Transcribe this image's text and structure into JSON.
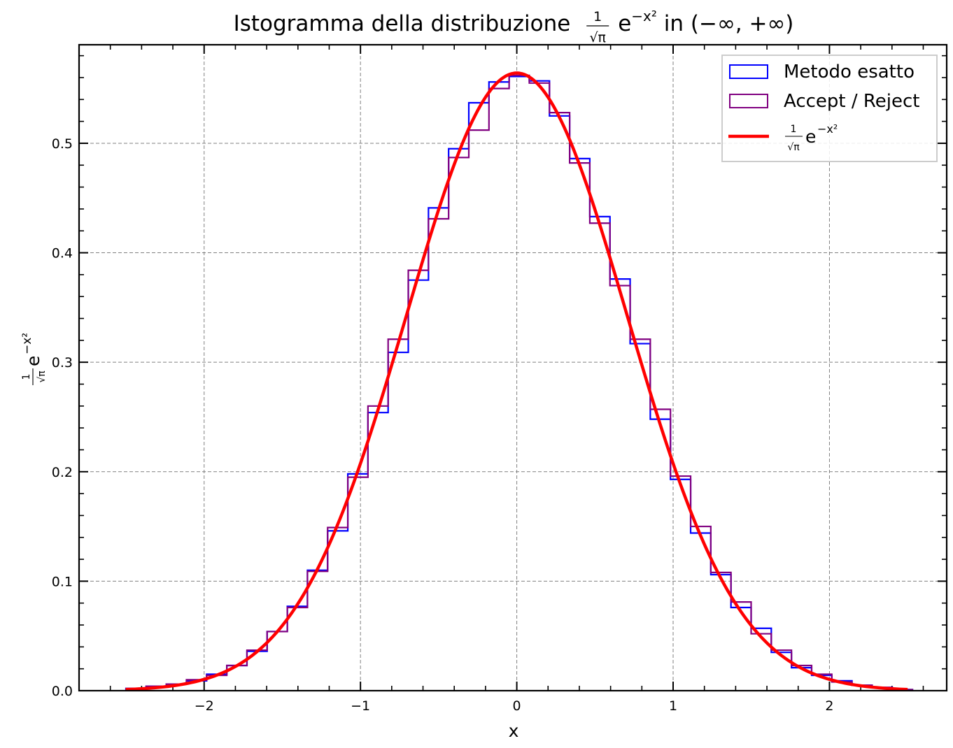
{
  "chart_data": {
    "type": "histogram",
    "title": {
      "prefix": "Istogramma della distribuzione ",
      "frac_num": "1",
      "frac_den": "√π",
      "base": "e",
      "exponent": "−x²",
      "suffix": " in (−∞, +∞)"
    },
    "xlabel": "x",
    "ylabel": {
      "frac_num": "1",
      "frac_den": "√π",
      "base": "e",
      "exponent": "−x²"
    },
    "xlim": [
      -2.8,
      2.75
    ],
    "ylim": [
      0,
      0.59
    ],
    "x_ticks": [
      -2,
      -1,
      0,
      1,
      2
    ],
    "x_tick_labels": [
      "−2",
      "−1",
      "0",
      "1",
      "2"
    ],
    "y_ticks": [
      0.0,
      0.1,
      0.2,
      0.3,
      0.4,
      0.5
    ],
    "y_tick_labels": [
      "0.0",
      "0.1",
      "0.2",
      "0.3",
      "0.4",
      "0.5"
    ],
    "x_minor_step": 0.2,
    "y_minor_step": 0.02,
    "grid": true,
    "legend_position": "top-right",
    "bin_edges": [
      -2.5,
      -2.371,
      -2.242,
      -2.113,
      -1.984,
      -1.855,
      -1.726,
      -1.597,
      -1.468,
      -1.339,
      -1.21,
      -1.081,
      -0.952,
      -0.823,
      -0.694,
      -0.565,
      -0.436,
      -0.307,
      -0.178,
      -0.049,
      0.08,
      0.209,
      0.338,
      0.467,
      0.596,
      0.725,
      0.854,
      0.983,
      1.112,
      1.241,
      1.37,
      1.499,
      1.628,
      1.757,
      1.886,
      2.015,
      2.144,
      2.273,
      2.402,
      2.531
    ],
    "series": [
      {
        "name": "Metodo esatto",
        "kind": "step",
        "color": "#0000ff",
        "values": [
          0.002,
          0.004,
          0.006,
          0.009,
          0.015,
          0.023,
          0.036,
          0.054,
          0.077,
          0.11,
          0.146,
          0.198,
          0.254,
          0.309,
          0.375,
          0.441,
          0.495,
          0.537,
          0.556,
          0.561,
          0.557,
          0.525,
          0.486,
          0.433,
          0.376,
          0.317,
          0.248,
          0.193,
          0.144,
          0.106,
          0.076,
          0.057,
          0.035,
          0.021,
          0.014,
          0.009,
          0.005,
          0.003,
          0.001
        ]
      },
      {
        "name": "Accept / Reject",
        "kind": "step",
        "color": "#800080",
        "values": [
          0.002,
          0.004,
          0.006,
          0.01,
          0.014,
          0.023,
          0.037,
          0.054,
          0.076,
          0.109,
          0.149,
          0.195,
          0.26,
          0.321,
          0.384,
          0.431,
          0.487,
          0.512,
          0.55,
          0.562,
          0.555,
          0.528,
          0.482,
          0.427,
          0.37,
          0.321,
          0.257,
          0.196,
          0.15,
          0.108,
          0.081,
          0.052,
          0.037,
          0.023,
          0.015,
          0.008,
          0.005,
          0.003,
          0.001
        ]
      },
      {
        "name_math": {
          "frac_num": "1",
          "frac_den": "√π",
          "base": "e",
          "exponent": "−x²"
        },
        "kind": "curve",
        "color": "#ff0000",
        "function": "exp(-x^2)/sqrt(pi)",
        "x_range": [
          -2.5,
          2.5
        ]
      }
    ]
  }
}
